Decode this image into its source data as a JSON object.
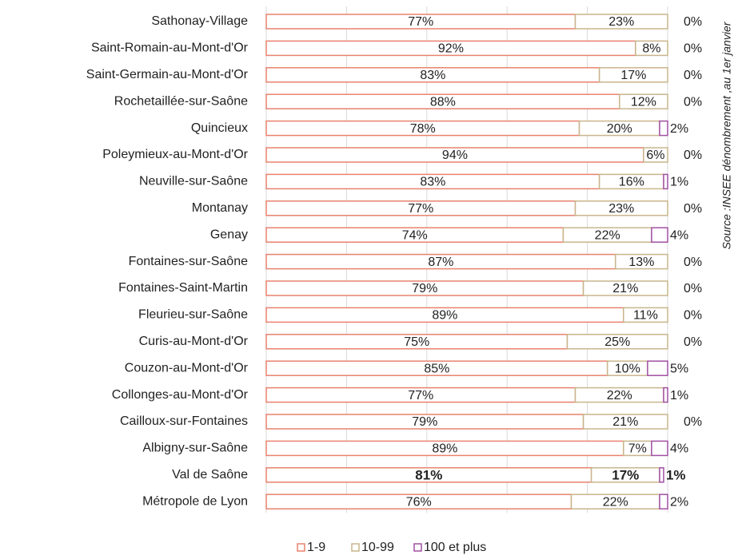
{
  "chart_data": {
    "type": "stacked_barh",
    "categories": [
      "Sathonay-Village",
      "Saint-Romain-au-Mont-d'Or",
      "Saint-Germain-au-Mont-d'Or",
      "Rochetaillée-sur-Saône",
      "Quincieux",
      "Poleymieux-au-Mont-d'Or",
      "Neuville-sur-Saône",
      "Montanay",
      "Genay",
      "Fontaines-sur-Saône",
      "Fontaines-Saint-Martin",
      "Fleurieu-sur-Saône",
      "Curis-au-Mont-d'Or",
      "Couzon-au-Mont-d'Or",
      "Collonges-au-Mont-d'Or",
      "Cailloux-sur-Fontaines",
      "Albigny-sur-Saône",
      "Val de Saône",
      "Métropole de Lyon"
    ],
    "series": [
      {
        "name": "1-9",
        "color": "#e8826e",
        "values": [
          77,
          92,
          83,
          88,
          78,
          94,
          83,
          77,
          74,
          87,
          79,
          89,
          75,
          85,
          77,
          79,
          89,
          81,
          76
        ],
        "value_labels": [
          "77%",
          "92%",
          "83%",
          "88%",
          "78%",
          "94%",
          "83%",
          "77%",
          "74%",
          "87%",
          "79%",
          "89%",
          "75%",
          "85%",
          "77%",
          "79%",
          "89%",
          "81%",
          "76%"
        ]
      },
      {
        "name": "10-99",
        "color": "#c9b58c",
        "values": [
          23,
          8,
          17,
          12,
          20,
          6,
          16,
          23,
          22,
          13,
          21,
          11,
          25,
          10,
          22,
          21,
          7,
          17,
          22
        ],
        "value_labels": [
          "23%",
          "8%",
          "17%",
          "12%",
          "20%",
          "6%",
          "16%",
          "23%",
          "22%",
          "13%",
          "21%",
          "11%",
          "25%",
          "10%",
          "22%",
          "21%",
          "7%",
          "17%",
          "22%"
        ]
      },
      {
        "name": "100 et plus",
        "color": "#a150a3",
        "values": [
          0,
          0,
          0,
          0,
          2,
          0,
          1,
          0,
          4,
          0,
          0,
          0,
          0,
          5,
          1,
          0,
          4,
          1,
          2
        ],
        "value_labels": [
          "0%",
          "0%",
          "0%",
          "0%",
          "2%",
          "0%",
          "1%",
          "0%",
          "4%",
          "0%",
          "0%",
          "0%",
          "0%",
          "5%",
          "1%",
          "0%",
          "4%",
          "1%",
          "2%"
        ]
      }
    ],
    "xlim": [
      0,
      100
    ],
    "xticks": [
      0,
      20,
      40,
      60,
      80,
      100
    ],
    "grid": true,
    "bold": [
      17
    ],
    "source": "Source :INSEE dénombrement ,au 1er janvier",
    "legend": "bottom"
  }
}
